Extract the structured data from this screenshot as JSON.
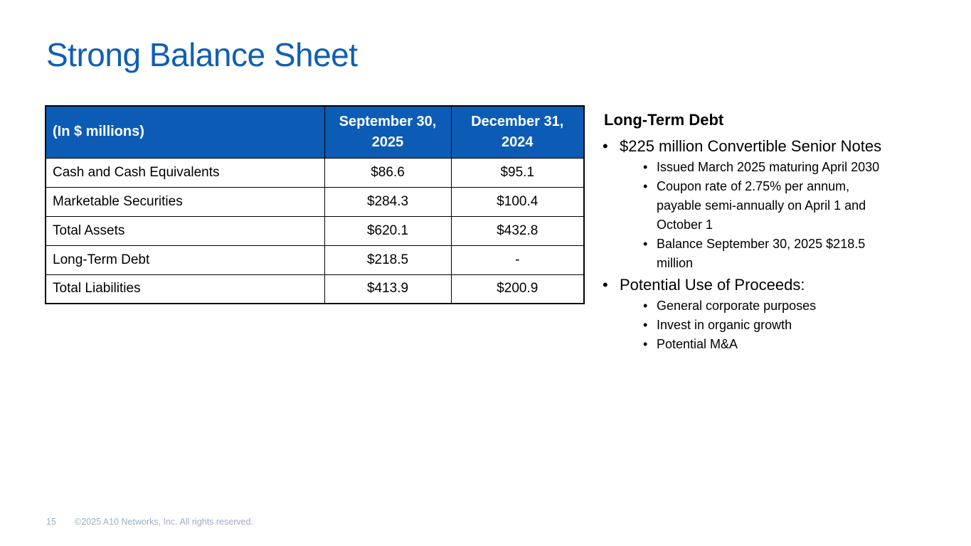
{
  "slide": {
    "title": "Strong Balance Sheet"
  },
  "colors": {
    "title_color": "#0E5FB5",
    "header_bg": "#0C5CB6",
    "header_text": "#FFFFFF",
    "body_text": "#000000",
    "footer_text": "#9BADC3",
    "bg": "#FFFFFF"
  },
  "table": {
    "header": [
      "(In $ millions)",
      "September 30, 2025",
      "December 31, 2024"
    ],
    "rows": [
      [
        "Cash and Cash Equivalents",
        "$86.6",
        "$95.1"
      ],
      [
        "Marketable Securities",
        "$284.3",
        "$100.4"
      ],
      [
        "Total Assets",
        "$620.1",
        "$432.8"
      ],
      [
        "Long-Term Debt",
        "$218.5",
        "-"
      ],
      [
        "Total Liabilities",
        "$413.9",
        "$200.9"
      ]
    ]
  },
  "notes": {
    "heading": "Long-Term Debt",
    "bullet_style": "•",
    "bullets": [
      {
        "text": "$225 million Convertible Senior Notes",
        "sub": [
          "Issued March 2025 maturing April 2030",
          "Coupon rate of 2.75% per annum, payable semi-annually on April 1 and October 1",
          "Balance September 30, 2025 $218.5 million"
        ]
      },
      {
        "text": "Potential Use of Proceeds:",
        "sub": [
          "General corporate purposes",
          "Invest in organic growth",
          "Potential M&A"
        ]
      }
    ]
  },
  "footer": {
    "page_number": "15",
    "copyright": "©2025 A10 Networks, Inc. All rights reserved."
  }
}
